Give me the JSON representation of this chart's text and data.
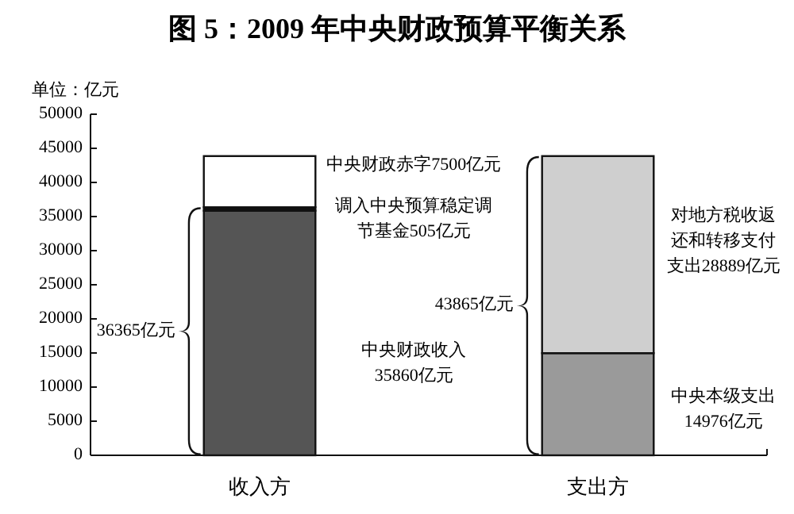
{
  "chart_data": {
    "type": "bar",
    "stacked": true,
    "title": "图 5：2009 年中央财政预算平衡关系",
    "ylabel": "单位：亿元",
    "categories": [
      "收入方",
      "支出方"
    ],
    "series": [
      {
        "colors": [
          "#555555",
          "#9a9a9a"
        ],
        "values": [
          35860,
          14976
        ]
      },
      {
        "colors": [
          "#111111",
          "#cfcfcf"
        ],
        "values": [
          505,
          28889
        ]
      },
      {
        "color": "#ffffff",
        "values": [
          7500,
          null
        ]
      }
    ],
    "ylim": [
      0,
      50000
    ],
    "yticks": [
      0,
      5000,
      10000,
      15000,
      20000,
      25000,
      30000,
      35000,
      40000,
      45000,
      50000
    ],
    "annotations": [
      "中央财政赤字7500亿元",
      "调入中央预算稳定调节基金505亿元",
      "中央财政收入35860亿元",
      "36365亿元",
      "对地方税收返还和转移支付支出28889亿元",
      "中央本级支出14976亿元",
      "43865亿元"
    ]
  }
}
